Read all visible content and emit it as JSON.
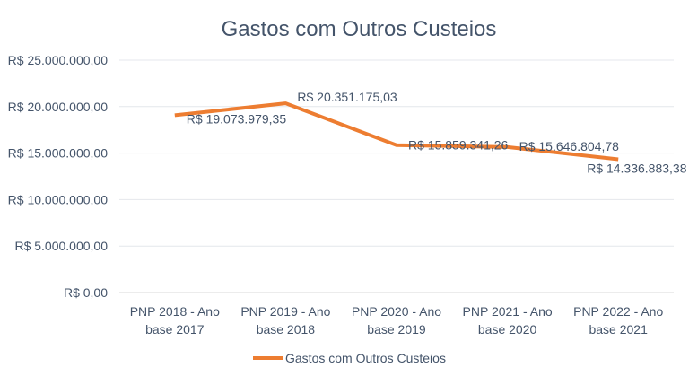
{
  "chart_data": {
    "type": "line",
    "title": "Gastos com Outros Custeios",
    "xlabel": "",
    "ylabel": "",
    "categories": [
      [
        "PNP 2018 - Ano",
        "base 2017"
      ],
      [
        "PNP 2019 - Ano",
        "base 2018"
      ],
      [
        "PNP 2020 - Ano",
        "base 2019"
      ],
      [
        "PNP 2021 - Ano",
        "base 2020"
      ],
      [
        "PNP 2022 - Ano",
        "base 2021"
      ]
    ],
    "series": [
      {
        "name": "Gastos com Outros Custeios",
        "color": "#ed7d31",
        "values": [
          19073979.35,
          20351175.03,
          15859341.26,
          15646804.78,
          14336883.38
        ],
        "labels": [
          "R$ 19.073.979,35",
          "R$ 20.351.175,03",
          "R$ 15.859.341,26",
          "R$ 15.646.804,78",
          "R$ 14.336.883,38"
        ]
      }
    ],
    "ylim": [
      0,
      25000000
    ],
    "yticks": [
      0,
      5000000,
      10000000,
      15000000,
      20000000,
      25000000
    ],
    "ytick_labels": [
      "R$ 0,00",
      "R$ 5.000.000,00",
      "R$ 10.000.000,00",
      "R$ 15.000.000,00",
      "R$ 20.000.000,00",
      "R$ 25.000.000,00"
    ],
    "grid": true,
    "legend": "bottom"
  }
}
